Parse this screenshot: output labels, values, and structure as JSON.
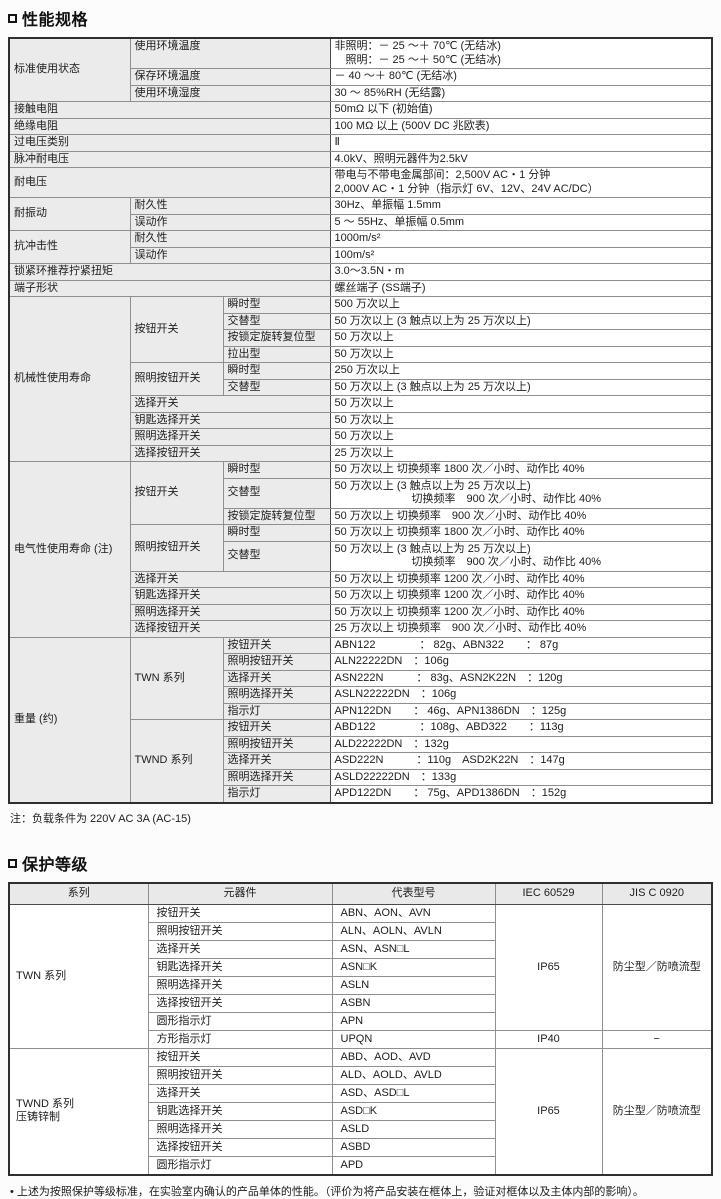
{
  "colors": {
    "label_bg": "#ebebeb",
    "header_bg": "#e9e9e9",
    "border_outer": "#2f2f2f",
    "border_inner": "#8f8f8f",
    "value_divider": "#4a4a4a"
  },
  "perf": {
    "title": "性能规格",
    "table": {
      "rows": [
        {
          "cls": "h2",
          "cells": [
            {
              "t": "标准使用状态",
              "k": "lab",
              "r": 3
            },
            {
              "t": "使用环境温度",
              "k": "lab vtop",
              "c": 2
            },
            {
              "t": "非照明：－ 25 ～＋ 70℃ (无结冰)\n　照明：－ 25 ～＋ 50℃ (无结冰)",
              "k": "val"
            }
          ]
        },
        {
          "cells": [
            {
              "t": "保存环境温度",
              "k": "lab",
              "c": 2
            },
            {
              "t": "－ 40 ～＋ 80℃ (无结冰)",
              "k": "val"
            }
          ]
        },
        {
          "cells": [
            {
              "t": "使用环境湿度",
              "k": "lab",
              "c": 2
            },
            {
              "t": "30 ～ 85%RH (无结露)",
              "k": "val"
            }
          ]
        },
        {
          "cells": [
            {
              "t": "接触电阻",
              "k": "lab",
              "c": 3
            },
            {
              "t": "50mΩ 以下 (初始值)",
              "k": "val"
            }
          ]
        },
        {
          "cells": [
            {
              "t": "绝缘电阻",
              "k": "lab",
              "c": 3
            },
            {
              "t": "100 MΩ 以上 (500V DC 兆欧表)",
              "k": "val"
            }
          ]
        },
        {
          "cells": [
            {
              "t": "过电压类别",
              "k": "lab",
              "c": 3
            },
            {
              "t": "Ⅱ",
              "k": "val"
            }
          ]
        },
        {
          "cells": [
            {
              "t": "脉冲耐电压",
              "k": "lab",
              "c": 3
            },
            {
              "t": "4.0kV、照明元器件为2.5kV",
              "k": "val"
            }
          ]
        },
        {
          "cls": "h2",
          "cells": [
            {
              "t": "耐电压",
              "k": "lab",
              "c": 3
            },
            {
              "t": "带电与不带电金属部间：2,500V AC・1 分钟\n2,000V AC・1 分钟（指示灯 6V、12V、24V AC/DC）",
              "k": "val"
            }
          ]
        },
        {
          "cells": [
            {
              "t": "耐振动",
              "k": "lab",
              "r": 2
            },
            {
              "t": "耐久性",
              "k": "lab",
              "c": 2
            },
            {
              "t": "30Hz、单振幅 1.5mm",
              "k": "val"
            }
          ]
        },
        {
          "cells": [
            {
              "t": "误动作",
              "k": "lab",
              "c": 2
            },
            {
              "t": "5 ～ 55Hz、单振幅 0.5mm",
              "k": "val"
            }
          ]
        },
        {
          "cells": [
            {
              "t": "抗冲击性",
              "k": "lab",
              "r": 2
            },
            {
              "t": "耐久性",
              "k": "lab",
              "c": 2
            },
            {
              "t": "1000m/s²",
              "k": "val"
            }
          ]
        },
        {
          "cells": [
            {
              "t": "误动作",
              "k": "lab",
              "c": 2
            },
            {
              "t": "100m/s²",
              "k": "val"
            }
          ]
        },
        {
          "cells": [
            {
              "t": "锁紧环推荐拧紧扭矩",
              "k": "lab",
              "c": 3
            },
            {
              "t": "3.0～3.5N・m",
              "k": "val"
            }
          ]
        },
        {
          "cells": [
            {
              "t": "端子形状",
              "k": "lab",
              "c": 3
            },
            {
              "t": "螺丝端子 (SS端子)",
              "k": "val"
            }
          ]
        },
        {
          "cells": [
            {
              "t": "机械性使用寿命",
              "k": "lab",
              "r": 10
            },
            {
              "t": "按钮开关",
              "k": "lab",
              "r": 4
            },
            {
              "t": "瞬时型",
              "k": "lab"
            },
            {
              "t": "500 万次以上",
              "k": "val"
            }
          ]
        },
        {
          "cells": [
            {
              "t": "交替型",
              "k": "lab"
            },
            {
              "t": "50 万次以上 (3 触点以上为 25 万次以上)",
              "k": "val"
            }
          ]
        },
        {
          "cells": [
            {
              "t": "按锁定旋转复位型",
              "k": "lab"
            },
            {
              "t": "50 万次以上",
              "k": "val"
            }
          ]
        },
        {
          "cells": [
            {
              "t": "拉出型",
              "k": "lab"
            },
            {
              "t": "50 万次以上",
              "k": "val"
            }
          ]
        },
        {
          "cells": [
            {
              "t": "照明按钮开关",
              "k": "lab",
              "r": 2
            },
            {
              "t": "瞬时型",
              "k": "lab"
            },
            {
              "t": "250 万次以上",
              "k": "val"
            }
          ]
        },
        {
          "cells": [
            {
              "t": "交替型",
              "k": "lab"
            },
            {
              "t": "50 万次以上 (3 触点以上为 25 万次以上)",
              "k": "val"
            }
          ]
        },
        {
          "cells": [
            {
              "t": "选择开关",
              "k": "lab",
              "c": 2
            },
            {
              "t": "50 万次以上",
              "k": "val"
            }
          ]
        },
        {
          "cells": [
            {
              "t": "钥匙选择开关",
              "k": "lab",
              "c": 2
            },
            {
              "t": "50 万次以上",
              "k": "val"
            }
          ]
        },
        {
          "cells": [
            {
              "t": "照明选择开关",
              "k": "lab",
              "c": 2
            },
            {
              "t": "50 万次以上",
              "k": "val"
            }
          ]
        },
        {
          "cells": [
            {
              "t": "选择按钮开关",
              "k": "lab",
              "c": 2
            },
            {
              "t": "25 万次以上",
              "k": "val"
            }
          ]
        },
        {
          "cells": [
            {
              "t": "电气性使用寿命 (注)",
              "k": "lab",
              "r": 9
            },
            {
              "t": "按钮开关",
              "k": "lab",
              "r": 3
            },
            {
              "t": "瞬时型",
              "k": "lab"
            },
            {
              "t": "50 万次以上 切换频率 1800 次／小时、动作比 40%",
              "k": "val"
            }
          ]
        },
        {
          "cls": "h2",
          "cells": [
            {
              "t": "交替型",
              "k": "lab"
            },
            {
              "t": "50 万次以上 (3 触点以上为 25 万次以上)\n　　　　　　　切换频率　900 次／小时、动作比 40%",
              "k": "val"
            }
          ]
        },
        {
          "cells": [
            {
              "t": "按锁定旋转复位型",
              "k": "lab"
            },
            {
              "t": "50 万次以上 切换频率　900 次／小时、动作比 40%",
              "k": "val"
            }
          ]
        },
        {
          "cells": [
            {
              "t": "照明按钮开关",
              "k": "lab",
              "r": 2
            },
            {
              "t": "瞬时型",
              "k": "lab"
            },
            {
              "t": "50 万次以上 切换频率 1800 次／小时、动作比 40%",
              "k": "val"
            }
          ]
        },
        {
          "cls": "h2",
          "cells": [
            {
              "t": "交替型",
              "k": "lab"
            },
            {
              "t": "50 万次以上 (3 触点以上为 25 万次以上)\n　　　　　　　切换频率　900 次／小时、动作比 40%",
              "k": "val"
            }
          ]
        },
        {
          "cells": [
            {
              "t": "选择开关",
              "k": "lab",
              "c": 2
            },
            {
              "t": "50 万次以上 切换频率 1200 次／小时、动作比 40%",
              "k": "val"
            }
          ]
        },
        {
          "cells": [
            {
              "t": "钥匙选择开关",
              "k": "lab",
              "c": 2
            },
            {
              "t": "50 万次以上 切换频率 1200 次／小时、动作比 40%",
              "k": "val"
            }
          ]
        },
        {
          "cells": [
            {
              "t": "照明选择开关",
              "k": "lab",
              "c": 2
            },
            {
              "t": "50 万次以上 切换频率 1200 次／小时、动作比 40%",
              "k": "val"
            }
          ]
        },
        {
          "cells": [
            {
              "t": "选择按钮开关",
              "k": "lab",
              "c": 2
            },
            {
              "t": "25 万次以上 切换频率　900 次／小时、动作比 40%",
              "k": "val"
            }
          ]
        },
        {
          "cells": [
            {
              "t": "重量 (约)",
              "k": "lab",
              "r": 10
            },
            {
              "t": "TWN 系列",
              "k": "lab",
              "r": 5
            },
            {
              "t": "按钮开关",
              "k": "lab"
            },
            {
              "t": "ABN122　　　　： 82g、ABN322　　： 87g",
              "k": "val"
            }
          ]
        },
        {
          "cells": [
            {
              "t": "照明按钮开关",
              "k": "lab"
            },
            {
              "t": "ALN22222DN　：106g",
              "k": "val"
            }
          ]
        },
        {
          "cells": [
            {
              "t": "选择开关",
              "k": "lab"
            },
            {
              "t": "ASN222N　　　： 83g、ASN2K22N　：120g",
              "k": "val"
            }
          ]
        },
        {
          "cells": [
            {
              "t": "照明选择开关",
              "k": "lab"
            },
            {
              "t": "ASLN22222DN　：106g",
              "k": "val"
            }
          ]
        },
        {
          "cells": [
            {
              "t": "指示灯",
              "k": "lab"
            },
            {
              "t": "APN122DN　　： 46g、APN1386DN　：125g",
              "k": "val"
            }
          ]
        },
        {
          "cells": [
            {
              "t": "TWND 系列",
              "k": "lab",
              "r": 5
            },
            {
              "t": "按钮开关",
              "k": "lab"
            },
            {
              "t": "ABD122　　　　：108g、ABD322　　：113g",
              "k": "val"
            }
          ]
        },
        {
          "cells": [
            {
              "t": "照明按钮开关",
              "k": "lab"
            },
            {
              "t": "ALD22222DN　：132g",
              "k": "val"
            }
          ]
        },
        {
          "cells": [
            {
              "t": "选择开关",
              "k": "lab"
            },
            {
              "t": "ASD222N　　　：110g　ASD2K22N　：147g",
              "k": "val"
            }
          ]
        },
        {
          "cells": [
            {
              "t": "照明选择开关",
              "k": "lab"
            },
            {
              "t": "ASLD22222DN　：133g",
              "k": "val"
            }
          ]
        },
        {
          "cells": [
            {
              "t": "指示灯",
              "k": "lab"
            },
            {
              "t": "APD122DN　　： 75g、APD1386DN　：152g",
              "k": "val"
            }
          ]
        }
      ]
    }
  },
  "perf_note": "注：负载条件为 220V AC 3A (AC-15)",
  "protect": {
    "title": "保护等级",
    "table": {
      "rows": [
        {
          "cls": "hrow",
          "cells": [
            {
              "t": "系列",
              "k": "hdr"
            },
            {
              "t": "元器件",
              "k": "hdr"
            },
            {
              "t": "代表型号",
              "k": "hdr"
            },
            {
              "t": "IEC 60529",
              "k": "hdr"
            },
            {
              "t": "JIS C 0920",
              "k": "hdr"
            }
          ]
        },
        {
          "cells": [
            {
              "t": "TWN 系列",
              "k": "ser",
              "r": 8
            },
            {
              "t": "按钮开关",
              "k": "dev"
            },
            {
              "t": "ABN、AON、AVN",
              "k": "mod"
            },
            {
              "t": "IP65",
              "k": "ctr",
              "r": 7
            },
            {
              "t": "防尘型／防喷流型",
              "k": "ctr",
              "r": 7
            }
          ]
        },
        {
          "cells": [
            {
              "t": "照明按钮开关",
              "k": "dev"
            },
            {
              "t": "ALN、AOLN、AVLN",
              "k": "mod"
            }
          ]
        },
        {
          "cells": [
            {
              "t": "选择开关",
              "k": "dev"
            },
            {
              "t": "ASN、ASN□L",
              "k": "mod"
            }
          ]
        },
        {
          "cells": [
            {
              "t": "钥匙选择开关",
              "k": "dev"
            },
            {
              "t": "ASN□K",
              "k": "mod"
            }
          ]
        },
        {
          "cells": [
            {
              "t": "照明选择开关",
              "k": "dev"
            },
            {
              "t": "ASLN",
              "k": "mod"
            }
          ]
        },
        {
          "cells": [
            {
              "t": "选择按钮开关",
              "k": "dev"
            },
            {
              "t": "ASBN",
              "k": "mod"
            }
          ]
        },
        {
          "cells": [
            {
              "t": "圆形指示灯",
              "k": "dev"
            },
            {
              "t": "APN",
              "k": "mod"
            }
          ]
        },
        {
          "cells": [
            {
              "t": "方形指示灯",
              "k": "dev"
            },
            {
              "t": "UPQN",
              "k": "mod"
            },
            {
              "t": "IP40",
              "k": "ctr"
            },
            {
              "t": "−",
              "k": "ctr"
            }
          ]
        },
        {
          "cells": [
            {
              "t": "TWND 系列\n压铸锌制",
              "k": "ser",
              "r": 7
            },
            {
              "t": "按钮开关",
              "k": "dev"
            },
            {
              "t": "ABD、AOD、AVD",
              "k": "mod"
            },
            {
              "t": "IP65",
              "k": "ctr",
              "r": 7
            },
            {
              "t": "防尘型／防喷流型",
              "k": "ctr",
              "r": 7
            }
          ]
        },
        {
          "cells": [
            {
              "t": "照明按钮开关",
              "k": "dev"
            },
            {
              "t": "ALD、AOLD、AVLD",
              "k": "mod"
            }
          ]
        },
        {
          "cells": [
            {
              "t": "选择开关",
              "k": "dev"
            },
            {
              "t": "ASD、ASD□L",
              "k": "mod"
            }
          ]
        },
        {
          "cells": [
            {
              "t": "钥匙选择开关",
              "k": "dev"
            },
            {
              "t": "ASD□K",
              "k": "mod"
            }
          ]
        },
        {
          "cells": [
            {
              "t": "照明选择开关",
              "k": "dev"
            },
            {
              "t": "ASLD",
              "k": "mod"
            }
          ]
        },
        {
          "cells": [
            {
              "t": "选择按钮开关",
              "k": "dev"
            },
            {
              "t": "ASBD",
              "k": "mod"
            }
          ]
        },
        {
          "cells": [
            {
              "t": "圆形指示灯",
              "k": "dev"
            },
            {
              "t": "APD",
              "k": "mod"
            }
          ]
        }
      ]
    }
  },
  "footnote": "• 上述为按照保护等级标准，在实验室内确认的产品单体的性能。（评价为将产品安装在框体上，验证对框体以及主体内部的影响）。"
}
